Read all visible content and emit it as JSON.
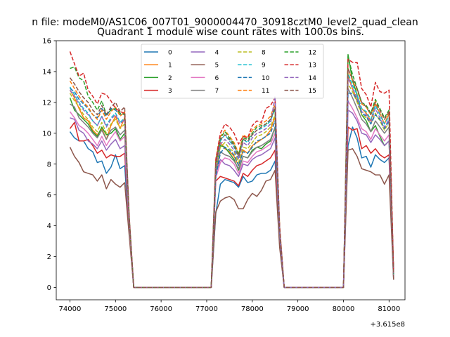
{
  "chart_data": {
    "type": "line",
    "suptitle": "n file: modeM0/AS1C06_007T01_9000004470_30918cztM0_level2_quad_clean",
    "title": "Quadrant 1 module wise count rates with 100.0s bins.",
    "xlabel": "",
    "ylabel": "",
    "xlim": [
      73700,
      81350
    ],
    "ylim": [
      -0.8,
      16.0
    ],
    "offset_label": "+3.615e8",
    "xticks": [
      74000,
      75000,
      76000,
      77000,
      78000,
      79000,
      80000,
      81000
    ],
    "yticks": [
      0,
      2,
      4,
      6,
      8,
      10,
      12,
      14,
      16
    ],
    "x_start": 74000,
    "x_step": 100,
    "legend_location": "upper-center",
    "legend_columns": 4,
    "series": [
      {
        "name": "0",
        "color": "#1f77b4",
        "dash": "solid",
        "values": [
          10.1,
          9.7,
          9.5,
          9.5,
          9.0,
          8.8,
          8.1,
          8.2,
          7.4,
          7.8,
          8.6,
          7.7,
          7.9,
          3.7,
          0,
          0,
          0,
          0,
          0,
          0,
          0,
          0,
          0,
          0,
          0,
          0,
          0,
          0,
          0,
          0,
          0,
          0,
          4.8,
          6.7,
          7.0,
          6.9,
          6.8,
          6.5,
          7.2,
          6.8,
          6.9,
          7.3,
          7.4,
          7.4,
          7.6,
          8.2,
          2.8,
          0,
          0,
          0,
          0,
          0,
          0,
          0,
          0,
          0,
          0,
          0,
          0,
          0,
          0,
          9.2,
          10.4,
          9.7,
          8.4,
          8.5,
          7.8,
          8.6,
          8.3,
          8.1,
          8.4,
          0.5
        ]
      },
      {
        "name": "1",
        "color": "#ff7f0e",
        "dash": "solid",
        "values": [
          12.8,
          12.3,
          11.6,
          11.0,
          10.8,
          10.2,
          9.9,
          10.3,
          9.6,
          10.5,
          11.1,
          10.3,
          11.0,
          4.4,
          0,
          0,
          0,
          0,
          0,
          0,
          0,
          0,
          0,
          0,
          0,
          0,
          0,
          0,
          0,
          0,
          0,
          0,
          7.6,
          9.4,
          9.0,
          8.8,
          8.5,
          7.9,
          8.9,
          8.7,
          9.2,
          9.4,
          9.6,
          9.8,
          10.2,
          11.1,
          3.8,
          0,
          0,
          0,
          0,
          0,
          0,
          0,
          0,
          0,
          0,
          0,
          0,
          0,
          0,
          13.7,
          12.9,
          12.1,
          11.6,
          11.3,
          10.8,
          11.9,
          11.3,
          10.6,
          11.3,
          1.0
        ]
      },
      {
        "name": "2",
        "color": "#2ca02c",
        "dash": "solid",
        "values": [
          12.3,
          11.5,
          11.2,
          10.9,
          10.6,
          10.1,
          9.8,
          10.4,
          9.9,
          10.0,
          10.3,
          9.6,
          10.0,
          4.2,
          0,
          0,
          0,
          0,
          0,
          0,
          0,
          0,
          0,
          0,
          0,
          0,
          0,
          0,
          0,
          0,
          0,
          0,
          7.8,
          9.2,
          9.1,
          8.7,
          8.3,
          7.6,
          8.5,
          8.4,
          8.9,
          9.1,
          9.0,
          9.3,
          9.5,
          10.4,
          3.6,
          0,
          0,
          0,
          0,
          0,
          0,
          0,
          0,
          0,
          0,
          0,
          0,
          0,
          0,
          15.1,
          13.4,
          12.5,
          11.2,
          10.8,
          10.1,
          10.5,
          9.8,
          9.2,
          9.5,
          0.8
        ]
      },
      {
        "name": "3",
        "color": "#d62728",
        "dash": "solid",
        "values": [
          10.3,
          10.7,
          9.5,
          9.5,
          9.6,
          9.2,
          8.7,
          8.9,
          8.4,
          8.6,
          8.5,
          8.5,
          8.7,
          3.8,
          0,
          0,
          0,
          0,
          0,
          0,
          0,
          0,
          0,
          0,
          0,
          0,
          0,
          0,
          0,
          0,
          0,
          0,
          6.9,
          7.2,
          7.1,
          7.0,
          6.9,
          6.6,
          7.4,
          7.2,
          7.6,
          7.9,
          8.0,
          8.2,
          8.4,
          8.9,
          3.0,
          0,
          0,
          0,
          0,
          0,
          0,
          0,
          0,
          0,
          0,
          0,
          0,
          0,
          0,
          10.4,
          10.2,
          10.3,
          9.0,
          9.2,
          8.7,
          9.0,
          8.6,
          8.4,
          8.6,
          0.6
        ]
      },
      {
        "name": "4",
        "color": "#9467bd",
        "dash": "solid",
        "values": [
          11.0,
          10.9,
          10.2,
          10.0,
          9.5,
          9.3,
          9.0,
          9.5,
          8.9,
          9.3,
          9.6,
          9.0,
          9.2,
          4.0,
          0,
          0,
          0,
          0,
          0,
          0,
          0,
          0,
          0,
          0,
          0,
          0,
          0,
          0,
          0,
          0,
          0,
          0,
          7.4,
          8.3,
          8.0,
          7.9,
          7.6,
          7.2,
          8.0,
          7.9,
          8.3,
          8.5,
          8.6,
          8.8,
          9.0,
          9.7,
          3.3,
          0,
          0,
          0,
          0,
          0,
          0,
          0,
          0,
          0,
          0,
          0,
          0,
          0,
          0,
          11.5,
          11.3,
          10.8,
          10.0,
          9.9,
          9.4,
          9.9,
          9.6,
          9.2,
          9.5,
          0.7
        ]
      },
      {
        "name": "5",
        "color": "#8c564b",
        "dash": "solid",
        "values": [
          9.1,
          8.5,
          8.1,
          7.5,
          7.4,
          7.3,
          6.9,
          7.3,
          6.4,
          7.0,
          6.7,
          6.5,
          6.8,
          3.4,
          0,
          0,
          0,
          0,
          0,
          0,
          0,
          0,
          0,
          0,
          0,
          0,
          0,
          0,
          0,
          0,
          0,
          0,
          4.9,
          5.6,
          5.8,
          5.9,
          5.7,
          5.1,
          5.1,
          5.7,
          6.1,
          5.9,
          6.3,
          6.9,
          7.0,
          7.6,
          2.6,
          0,
          0,
          0,
          0,
          0,
          0,
          0,
          0,
          0,
          0,
          0,
          0,
          0,
          0,
          8.9,
          9.0,
          8.5,
          7.7,
          7.6,
          7.5,
          7.3,
          7.3,
          6.7,
          7.3,
          0.5
        ]
      },
      {
        "name": "6",
        "color": "#e377c2",
        "dash": "solid",
        "values": [
          11.4,
          11.0,
          10.5,
          10.3,
          10.0,
          9.6,
          9.2,
          9.8,
          9.2,
          9.7,
          10.1,
          9.5,
          9.8,
          4.1,
          0,
          0,
          0,
          0,
          0,
          0,
          0,
          0,
          0,
          0,
          0,
          0,
          0,
          0,
          0,
          0,
          0,
          0,
          7.1,
          8.1,
          8.4,
          8.3,
          8.0,
          7.4,
          8.2,
          8.1,
          8.5,
          8.8,
          8.9,
          9.1,
          9.3,
          10.0,
          3.4,
          0,
          0,
          0,
          0,
          0,
          0,
          0,
          0,
          0,
          0,
          0,
          0,
          0,
          0,
          12.1,
          11.6,
          11.0,
          10.3,
          10.1,
          9.6,
          10.3,
          9.9,
          9.5,
          9.9,
          0.8
        ]
      },
      {
        "name": "7",
        "color": "#7f7f7f",
        "dash": "solid",
        "values": [
          11.9,
          11.7,
          11.0,
          10.7,
          10.4,
          10.0,
          9.7,
          10.2,
          9.6,
          10.2,
          10.4,
          9.9,
          10.2,
          4.2,
          0,
          0,
          0,
          0,
          0,
          0,
          0,
          0,
          0,
          0,
          0,
          0,
          0,
          0,
          0,
          0,
          0,
          0,
          7.5,
          8.8,
          8.6,
          8.5,
          8.2,
          7.7,
          8.5,
          8.4,
          8.8,
          9.1,
          9.2,
          9.4,
          9.6,
          10.4,
          3.5,
          0,
          0,
          0,
          0,
          0,
          0,
          0,
          0,
          0,
          0,
          0,
          0,
          0,
          0,
          12.9,
          12.3,
          11.6,
          10.9,
          10.6,
          10.1,
          10.8,
          10.4,
          10.0,
          10.4,
          0.8
        ]
      },
      {
        "name": "8",
        "color": "#bcbd22",
        "dash": "dashed",
        "values": [
          12.6,
          12.1,
          11.7,
          11.2,
          10.9,
          10.4,
          10.1,
          10.7,
          10.0,
          10.6,
          10.9,
          10.3,
          10.6,
          4.3,
          0,
          0,
          0,
          0,
          0,
          0,
          0,
          0,
          0,
          0,
          0,
          0,
          0,
          0,
          0,
          0,
          0,
          0,
          7.8,
          9.1,
          9.4,
          9.0,
          8.8,
          8.1,
          9.1,
          9.0,
          9.4,
          9.8,
          9.9,
          10.1,
          10.4,
          11.2,
          3.7,
          0,
          0,
          0,
          0,
          0,
          0,
          0,
          0,
          0,
          0,
          0,
          0,
          0,
          0,
          13.2,
          12.7,
          12.0,
          11.2,
          11.0,
          10.6,
          11.3,
          10.8,
          10.2,
          10.7,
          0.9
        ]
      },
      {
        "name": "9",
        "color": "#17becf",
        "dash": "dashed",
        "values": [
          13.0,
          12.5,
          12.0,
          11.6,
          11.3,
          10.8,
          10.5,
          11.1,
          10.5,
          11.0,
          11.3,
          10.7,
          11.0,
          4.4,
          0,
          0,
          0,
          0,
          0,
          0,
          0,
          0,
          0,
          0,
          0,
          0,
          0,
          0,
          0,
          0,
          0,
          0,
          8.1,
          9.5,
          9.9,
          9.5,
          9.1,
          8.4,
          9.6,
          9.4,
          9.9,
          10.2,
          10.3,
          10.5,
          10.8,
          11.6,
          3.8,
          0,
          0,
          0,
          0,
          0,
          0,
          0,
          0,
          0,
          0,
          0,
          0,
          0,
          0,
          13.9,
          13.1,
          12.5,
          11.6,
          11.4,
          10.9,
          11.8,
          11.2,
          10.6,
          11.1,
          0.9
        ]
      },
      {
        "name": "10",
        "color": "#1f77b4",
        "dash": "dashed",
        "values": [
          12.9,
          12.7,
          12.2,
          11.9,
          11.6,
          11.2,
          11.0,
          11.6,
          11.1,
          11.6,
          11.5,
          11.2,
          11.3,
          4.5,
          0,
          0,
          0,
          0,
          0,
          0,
          0,
          0,
          0,
          0,
          0,
          0,
          0,
          0,
          0,
          0,
          0,
          0,
          7.2,
          8.7,
          9.1,
          8.9,
          8.6,
          7.9,
          8.8,
          8.7,
          9.1,
          9.5,
          9.6,
          9.8,
          10.0,
          10.8,
          3.6,
          0,
          0,
          0,
          0,
          0,
          0,
          0,
          0,
          0,
          0,
          0,
          0,
          0,
          0,
          12.6,
          12.6,
          12.2,
          11.3,
          11.1,
          10.6,
          11.2,
          10.9,
          10.3,
          10.8,
          0.9
        ]
      },
      {
        "name": "11",
        "color": "#ff7f0e",
        "dash": "dashed",
        "values": [
          13.4,
          12.9,
          12.4,
          12.0,
          11.7,
          11.2,
          10.9,
          11.5,
          10.9,
          11.4,
          11.7,
          11.1,
          11.4,
          4.5,
          0,
          0,
          0,
          0,
          0,
          0,
          0,
          0,
          0,
          0,
          0,
          0,
          0,
          0,
          0,
          0,
          0,
          0,
          8.3,
          9.8,
          10.2,
          9.8,
          9.4,
          8.7,
          9.9,
          9.7,
          10.2,
          10.5,
          10.6,
          10.8,
          11.1,
          11.9,
          3.9,
          0,
          0,
          0,
          0,
          0,
          0,
          0,
          0,
          0,
          0,
          0,
          0,
          0,
          0,
          14.2,
          13.4,
          12.8,
          11.9,
          11.7,
          11.2,
          12.1,
          11.5,
          10.9,
          11.4,
          0.9
        ]
      },
      {
        "name": "12",
        "color": "#2ca02c",
        "dash": "dashed",
        "values": [
          14.2,
          14.3,
          13.6,
          13.4,
          12.4,
          12.0,
          11.5,
          12.1,
          11.2,
          11.5,
          11.6,
          11.3,
          11.2,
          4.6,
          0,
          0,
          0,
          0,
          0,
          0,
          0,
          0,
          0,
          0,
          0,
          0,
          0,
          0,
          0,
          0,
          0,
          0,
          8.1,
          9.7,
          10.1,
          9.7,
          9.3,
          8.6,
          9.7,
          9.6,
          10.0,
          10.4,
          10.5,
          10.6,
          10.9,
          11.6,
          3.8,
          0,
          0,
          0,
          0,
          0,
          0,
          0,
          0,
          0,
          0,
          0,
          0,
          0,
          0,
          15.0,
          13.8,
          12.9,
          12.0,
          11.8,
          11.3,
          12.2,
          11.6,
          11.0,
          11.5,
          0.9
        ]
      },
      {
        "name": "13",
        "color": "#d62728",
        "dash": "dashed",
        "values": [
          15.3,
          14.5,
          13.7,
          13.9,
          12.8,
          12.4,
          11.9,
          12.6,
          12.5,
          12.1,
          11.6,
          11.4,
          11.3,
          4.7,
          0,
          0,
          0,
          0,
          0,
          0,
          0,
          0,
          0,
          0,
          0,
          0,
          0,
          0,
          0,
          0,
          0,
          0,
          8.3,
          10.0,
          10.6,
          10.4,
          10.0,
          9.3,
          9.8,
          9.7,
          10.5,
          10.8,
          10.7,
          11.6,
          11.8,
          12.3,
          4.0,
          0,
          0,
          0,
          0,
          0,
          0,
          0,
          0,
          0,
          0,
          0,
          0,
          0,
          0,
          14.8,
          14.6,
          14.6,
          12.9,
          12.5,
          11.7,
          13.3,
          12.7,
          12.6,
          12.8,
          1.0
        ]
      },
      {
        "name": "14",
        "color": "#9467bd",
        "dash": "dashed",
        "values": [
          12.8,
          12.4,
          11.9,
          11.5,
          11.2,
          10.8,
          10.5,
          11.1,
          10.4,
          10.9,
          11.2,
          10.6,
          10.9,
          4.4,
          0,
          0,
          0,
          0,
          0,
          0,
          0,
          0,
          0,
          0,
          0,
          0,
          0,
          0,
          0,
          0,
          0,
          0,
          7.9,
          9.3,
          9.6,
          9.3,
          8.9,
          8.3,
          9.4,
          9.2,
          9.7,
          10.0,
          10.1,
          10.3,
          10.6,
          12.4,
          3.7,
          0,
          0,
          0,
          0,
          0,
          0,
          0,
          0,
          0,
          0,
          0,
          0,
          0,
          0,
          13.6,
          12.9,
          12.3,
          11.4,
          11.2,
          10.7,
          11.6,
          11.0,
          10.4,
          10.9,
          0.9
        ]
      },
      {
        "name": "15",
        "color": "#8c564b",
        "dash": "dashed",
        "values": [
          13.6,
          13.2,
          12.7,
          12.3,
          12.0,
          11.5,
          11.2,
          11.8,
          11.2,
          11.7,
          12.0,
          11.4,
          11.7,
          4.6,
          0,
          0,
          0,
          0,
          0,
          0,
          0,
          0,
          0,
          0,
          0,
          0,
          0,
          0,
          0,
          0,
          0,
          0,
          8.0,
          9.6,
          9.9,
          9.6,
          9.2,
          8.5,
          9.6,
          9.5,
          9.9,
          10.2,
          10.4,
          10.6,
          10.9,
          11.7,
          3.8,
          0,
          0,
          0,
          0,
          0,
          0,
          0,
          0,
          0,
          0,
          0,
          0,
          0,
          0,
          14.2,
          13.5,
          12.9,
          12.0,
          11.7,
          11.2,
          12.0,
          11.5,
          10.9,
          11.4,
          0.9
        ]
      }
    ]
  }
}
